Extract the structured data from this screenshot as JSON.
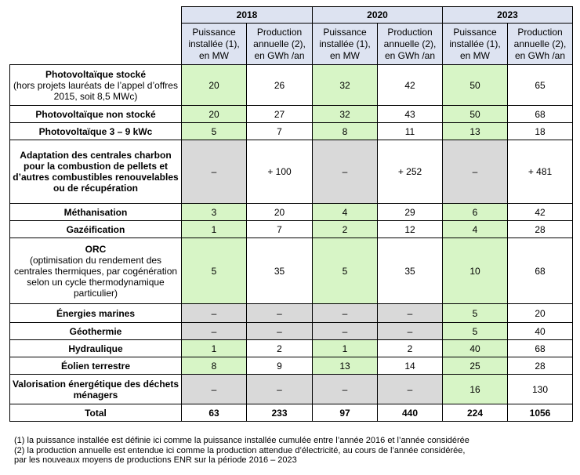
{
  "headers": {
    "years": [
      "2018",
      "2020",
      "2023"
    ],
    "sub": [
      "Puissance installée (1), en MW",
      "Production annuelle (2), en GWh /an",
      "Puissance installée (1), en MW",
      "Production annuelle (2), en GWh /an",
      "Puissance installée (1), en MW",
      "Production annuelle (2), en GWh /an"
    ]
  },
  "rows": [
    {
      "main": "Photovoltaïque stocké",
      "sub": "(hors projets lauréats de l’appel d’offres 2015, soit 8,5 MWc)",
      "values": [
        "20",
        "26",
        "32",
        "42",
        "50",
        "65"
      ],
      "style": [
        "g",
        "w",
        "g",
        "w",
        "g",
        "w"
      ]
    },
    {
      "main": "Photovoltaïque non stocké",
      "sub": "",
      "values": [
        "20",
        "27",
        "32",
        "43",
        "50",
        "68"
      ],
      "style": [
        "g",
        "w",
        "g",
        "w",
        "g",
        "w"
      ]
    },
    {
      "main": "Photovoltaïque 3 – 9 kWc",
      "sub": "",
      "values": [
        "5",
        "7",
        "8",
        "11",
        "13",
        "18"
      ],
      "style": [
        "g",
        "w",
        "g",
        "w",
        "g",
        "w"
      ]
    },
    {
      "main": "Adaptation des centrales charbon pour la combustion de pellets et d’autres combustibles renouvelables ou de récupération",
      "sub": "",
      "values": [
        "–",
        "+ 100",
        "–",
        "+ 252",
        "–",
        "+ 481"
      ],
      "style": [
        "gr",
        "w",
        "gr",
        "w",
        "gr",
        "w"
      ]
    },
    {
      "main": "Méthanisation",
      "sub": "",
      "values": [
        "3",
        "20",
        "4",
        "29",
        "6",
        "42"
      ],
      "style": [
        "g",
        "w",
        "g",
        "w",
        "g",
        "w"
      ]
    },
    {
      "main": "Gazéification",
      "sub": "",
      "values": [
        "1",
        "7",
        "2",
        "12",
        "4",
        "28"
      ],
      "style": [
        "g",
        "w",
        "g",
        "w",
        "g",
        "w"
      ]
    },
    {
      "main": "ORC",
      "sub": "(optimisation du rendement des centrales thermiques, par cogénération selon un cycle thermodynamique particulier)",
      "values": [
        "5",
        "35",
        "5",
        "35",
        "10",
        "68"
      ],
      "style": [
        "g",
        "w",
        "g",
        "w",
        "g",
        "w"
      ]
    },
    {
      "main": "Énergies marines",
      "sub": "",
      "values": [
        "–",
        "–",
        "–",
        "–",
        "5",
        "20"
      ],
      "style": [
        "gr",
        "gr",
        "gr",
        "gr",
        "g",
        "w"
      ]
    },
    {
      "main": "Géothermie",
      "sub": "",
      "values": [
        "–",
        "–",
        "–",
        "–",
        "5",
        "40"
      ],
      "style": [
        "gr",
        "gr",
        "gr",
        "gr",
        "g",
        "w"
      ]
    },
    {
      "main": "Hydraulique",
      "sub": "",
      "values": [
        "1",
        "2",
        "1",
        "2",
        "40",
        "68"
      ],
      "style": [
        "g",
        "w",
        "g",
        "w",
        "g",
        "w"
      ]
    },
    {
      "main": "Éolien terrestre",
      "sub": "",
      "values": [
        "8",
        "9",
        "13",
        "14",
        "25",
        "28"
      ],
      "style": [
        "g",
        "w",
        "g",
        "w",
        "g",
        "w"
      ]
    },
    {
      "main": "Valorisation énergétique des déchets ménagers",
      "sub": "",
      "values": [
        "–",
        "–",
        "–",
        "–",
        "16",
        "130"
      ],
      "style": [
        "gr",
        "gr",
        "gr",
        "gr",
        "g",
        "w"
      ]
    }
  ],
  "total": {
    "label": "Total",
    "values": [
      "63",
      "233",
      "97",
      "440",
      "224",
      "1056"
    ]
  },
  "notes": [
    "(1) la puissance installée est définie ici comme la puissance installée cumulée entre l’année 2016 et l’année considérée",
    "(2) la production annuelle est entendue ici comme la production attendue d’électricité, au cours de l’année considérée,",
    "par les nouveaux moyens de productions ENR sur la période 2016 – 2023"
  ],
  "colors": {
    "header": "#dde3f1",
    "green": "#d7f5c6",
    "grey": "#d9d9d9"
  }
}
